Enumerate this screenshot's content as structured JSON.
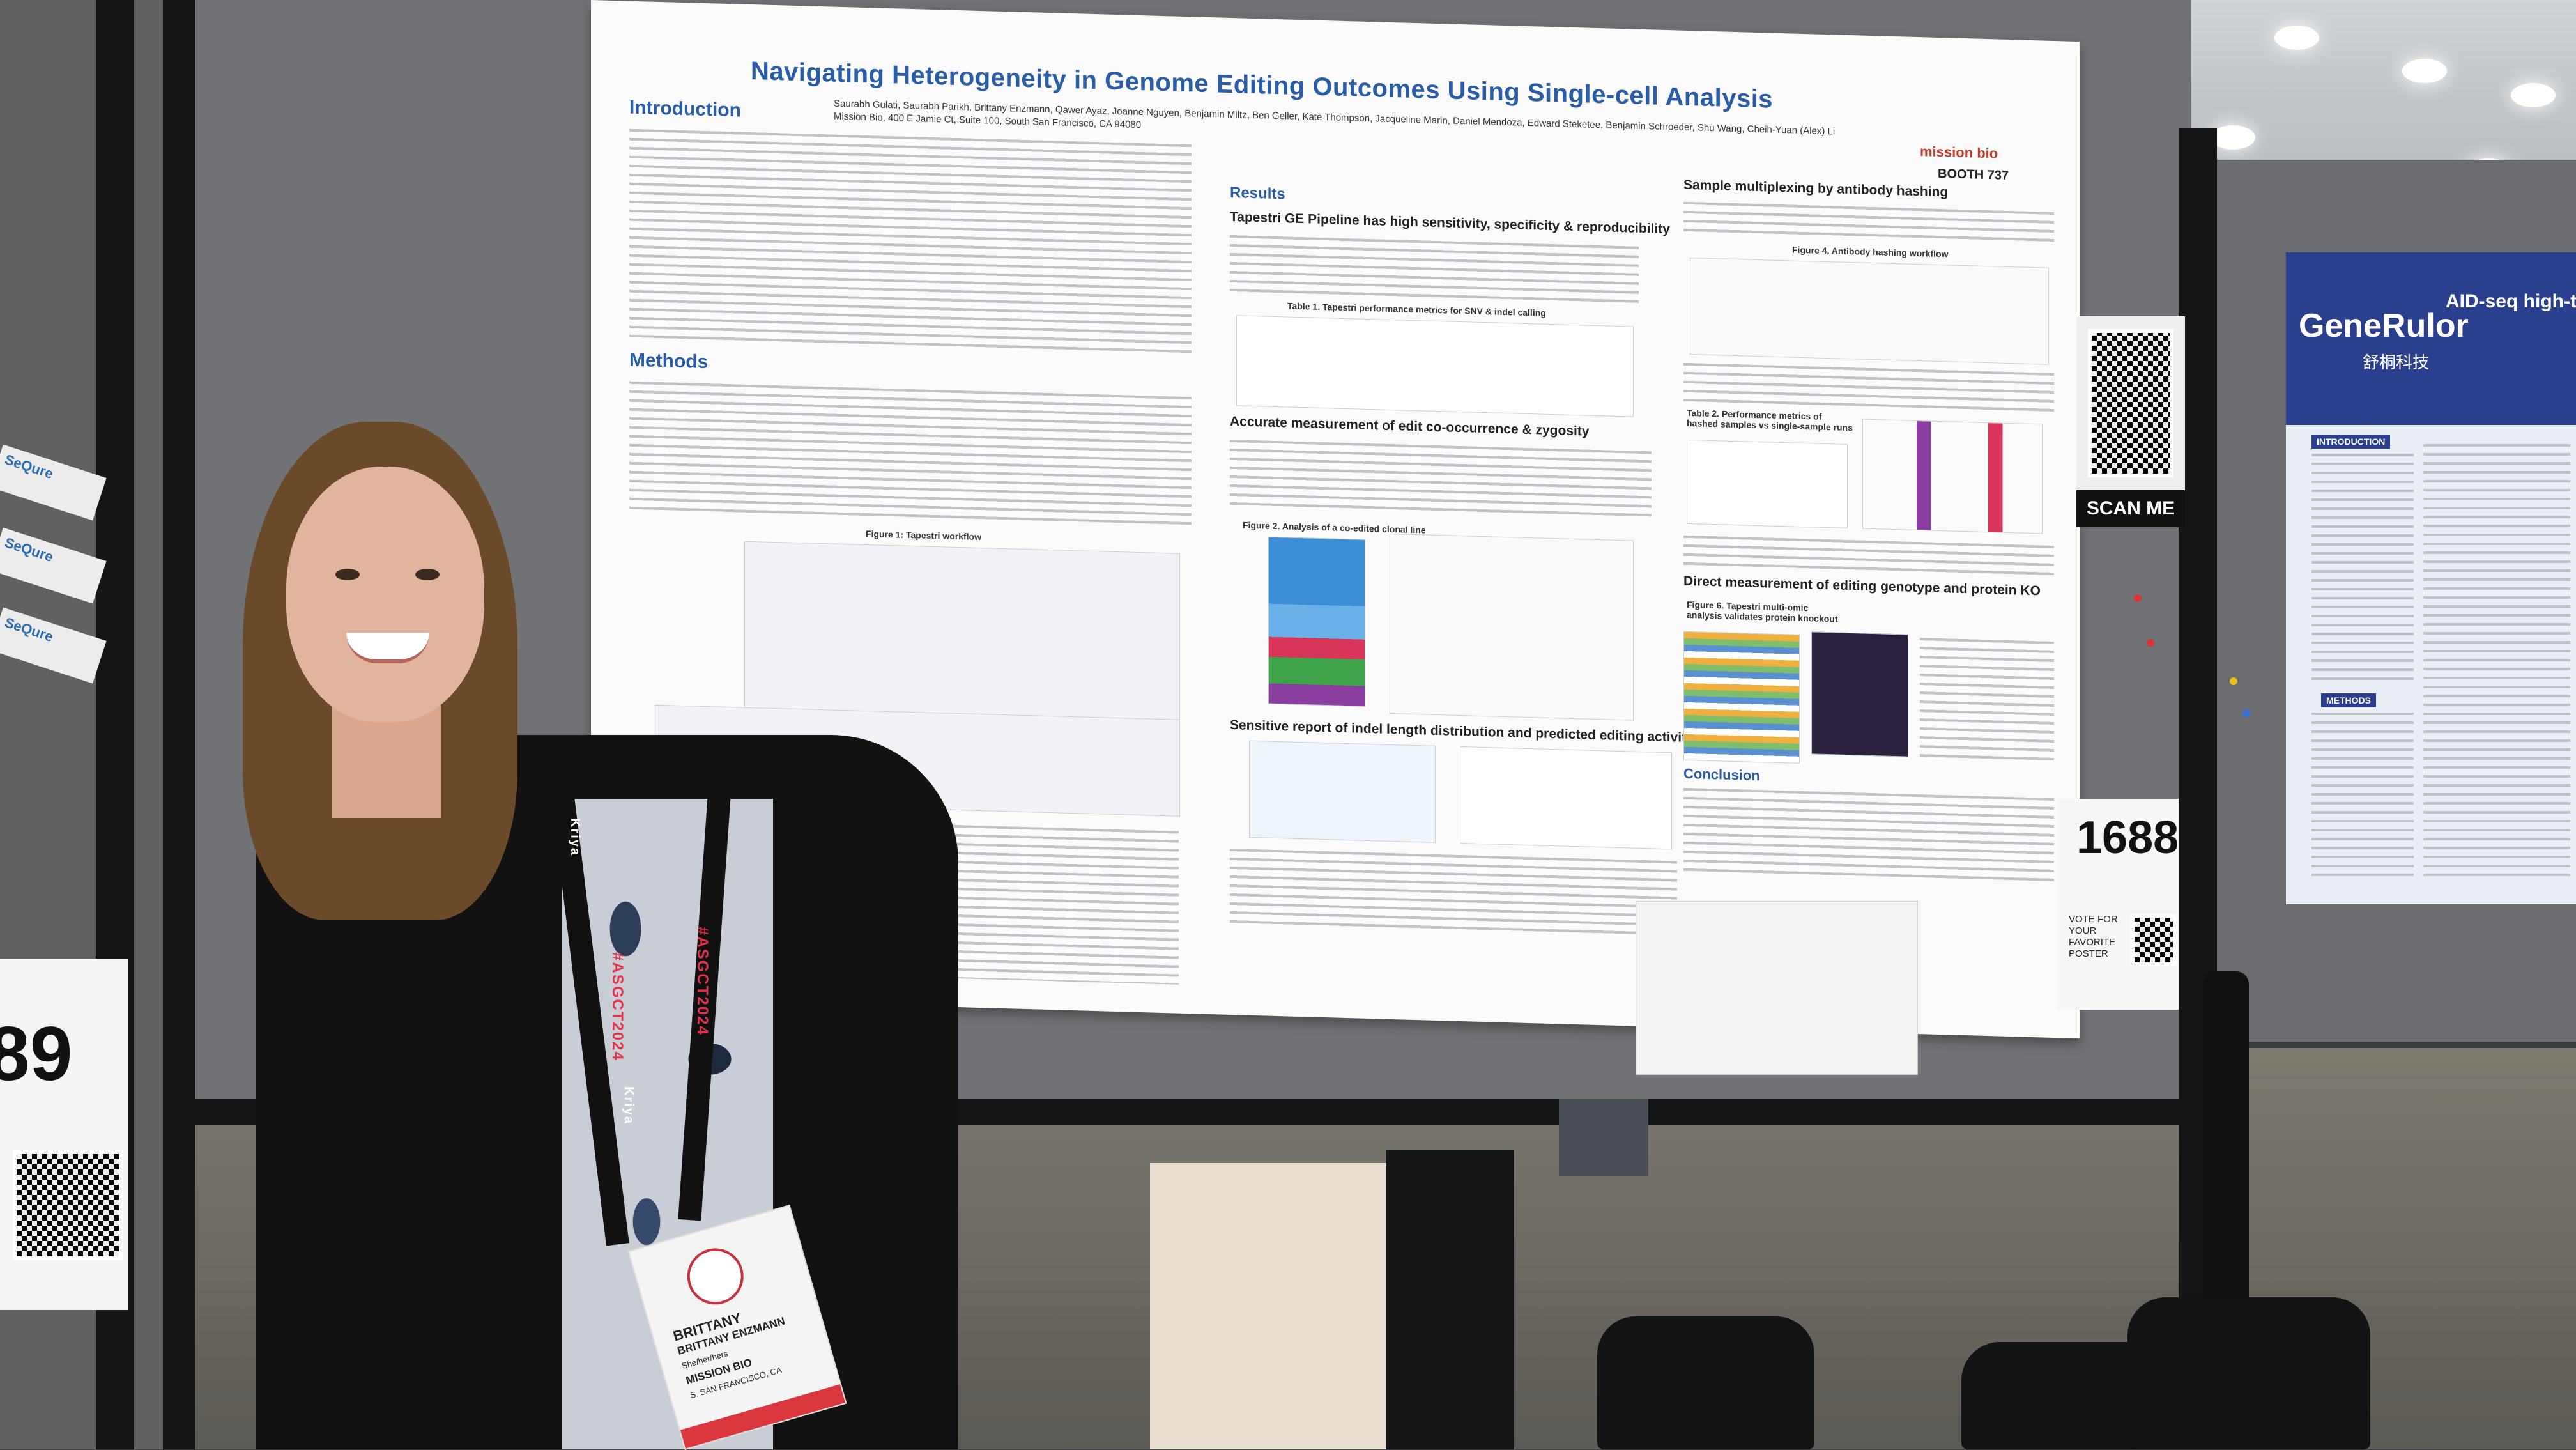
{
  "poster": {
    "title": "Navigating Heterogeneity in Genome Editing Outcomes Using Single-cell Analysis",
    "authors": "Saurabh Gulati, Saurabh Parikh, Brittany Enzmann, Qawer Ayaz, Joanne Nguyen, Benjamin Miltz, Ben Geller, Kate Thompson, Jacqueline Marin, Daniel Mendoza, Edward Steketee, Benjamin Schroeder, Shu Wang, Cheih-Yuan (Alex) Li",
    "affiliation": "Mission Bio, 400 E Jamie Ct, Suite 100, South San Francisco, CA 94080",
    "booth": "BOOTH 737",
    "logo": "mission bio",
    "sections": {
      "introduction": "Introduction",
      "methods": "Methods",
      "results": "Results",
      "conclusion": "Conclusion"
    },
    "subheadings": {
      "pipeline": "Tapestri GE Pipeline has high sensitivity, specificity & reproducibility",
      "cooccurrence": "Accurate measurement of edit co-occurrence & zygosity",
      "indel": "Sensitive report of indel length distribution and predicted editing activity",
      "multiplexing": "Sample multiplexing by antibody hashing",
      "genotype_protein": "Direct measurement of editing genotype and protein KO"
    },
    "figures": {
      "fig1": "Figure 1: Tapestri workflow",
      "table1": "Table 1. Tapestri performance metrics for SNV & indel calling",
      "fig2": "Figure 2. Analysis of a co-edited clonal line",
      "fig4": "Figure 4. Antibody hashing workflow",
      "table2": "Table 2. Performance metrics of hashed samples vs single-sample runs",
      "fig6": "Figure 6. Tapestri multi-omic analysis validates protein knockout"
    }
  },
  "board_number": "1688",
  "vote_text": "VOTE FOR YOUR FAVORITE POSTER",
  "left_board_number": "89",
  "sequre_label": "SeQure",
  "scan_me": "SCAN ME",
  "right_poster": {
    "logo": "GeneRulor",
    "logo_cn": "舒桐科技",
    "title": "AID-seq high-through",
    "section1": "INTRODUCTION",
    "section2": "METHODS"
  },
  "lanyard": {
    "event": "#ASGCT2024",
    "sponsor": "Kriya"
  },
  "badge": {
    "first_name": "BRITTANY",
    "full_name": "BRITTANY ENZMANN",
    "pronouns": "She/her/hers",
    "company": "MISSION BIO",
    "city": "S. SAN FRANCISCO, CA"
  }
}
